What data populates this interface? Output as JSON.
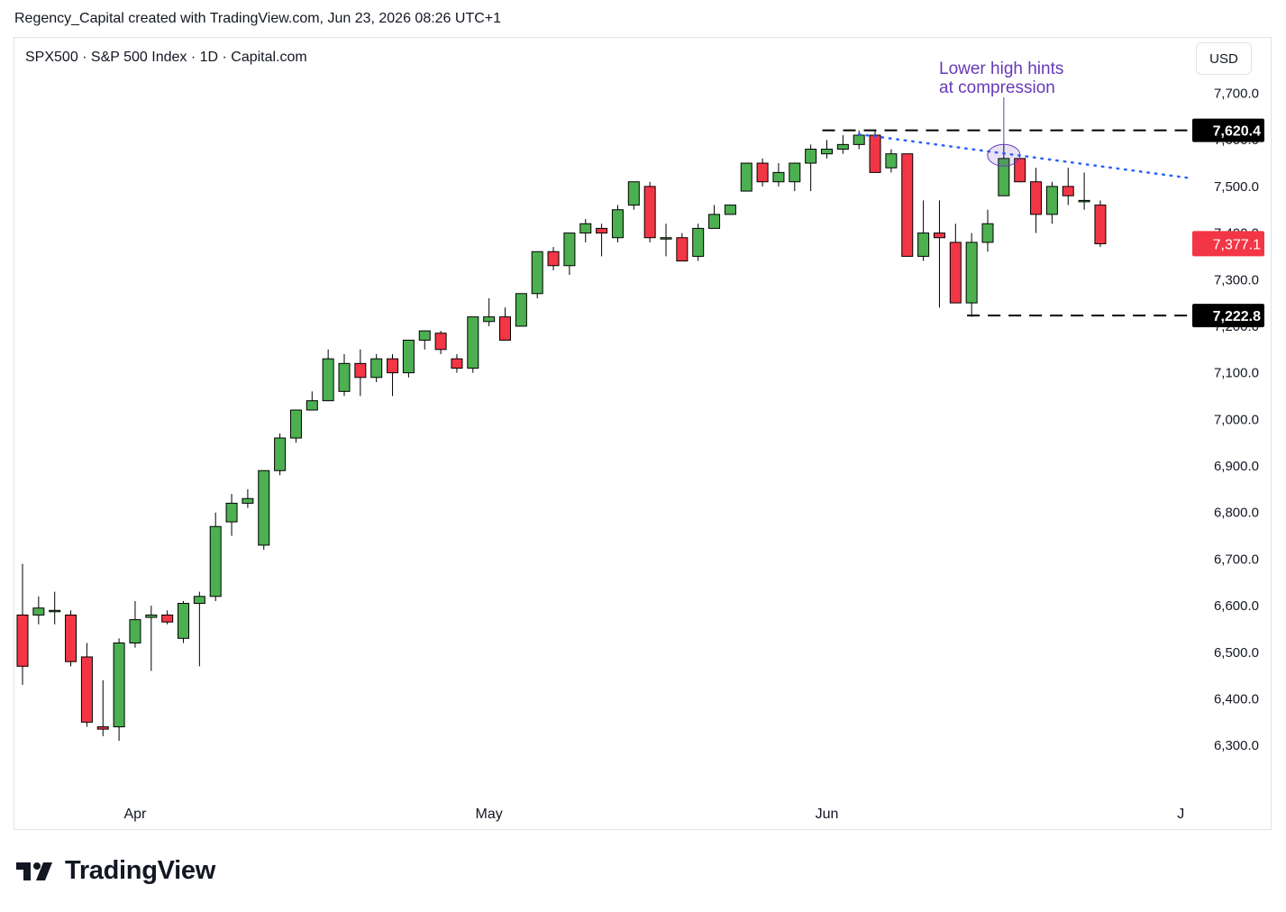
{
  "header": {
    "attribution": "Regency_Capital created with TradingView.com, Jun 23, 2026 08:26 UTC+1"
  },
  "symbol_line": "SPX500 · S&P 500 Index · 1D · Capital.com",
  "currency_button": "USD",
  "brand": "TradingView",
  "colors": {
    "up": "#4caf50",
    "down": "#f23645",
    "grid": "#ffffff",
    "trendline": "#2962ff",
    "annotation": "#673ab7",
    "price_badge": "#f23645"
  },
  "chart_data": {
    "type": "candlestick",
    "interval": "1D",
    "ylim": [
      6200,
      7760
    ],
    "y_ticks": [
      {
        "value": 6300,
        "label": "6,300.0"
      },
      {
        "value": 6400,
        "label": "6,400.0"
      },
      {
        "value": 6500,
        "label": "6,500.0"
      },
      {
        "value": 6600,
        "label": "6,600.0"
      },
      {
        "value": 6700,
        "label": "6,700.0"
      },
      {
        "value": 6800,
        "label": "6,800.0"
      },
      {
        "value": 6900,
        "label": "6,900.0"
      },
      {
        "value": 7000,
        "label": "7,000.0"
      },
      {
        "value": 7100,
        "label": "7,100.0"
      },
      {
        "value": 7200,
        "label": "7,200.0"
      },
      {
        "value": 7300,
        "label": "7,300.0"
      },
      {
        "value": 7400,
        "label": "7,400.0"
      },
      {
        "value": 7500,
        "label": "7,500.0"
      },
      {
        "value": 7600,
        "label": "7,600.0"
      },
      {
        "value": 7700,
        "label": "7,700.0"
      }
    ],
    "x_ticks": [
      {
        "bar": 7,
        "label": "Apr"
      },
      {
        "bar": 29,
        "label": "May"
      },
      {
        "bar": 50,
        "label": "Jun"
      },
      {
        "bar": 72,
        "label": "J"
      }
    ],
    "candles": [
      [
        6580,
        6690,
        6430,
        6470
      ],
      [
        6580,
        6620,
        6560,
        6595
      ],
      [
        6590,
        6630,
        6560,
        6590
      ],
      [
        6580,
        6590,
        6470,
        6480
      ],
      [
        6490,
        6520,
        6340,
        6350
      ],
      [
        6340,
        6440,
        6320,
        6335
      ],
      [
        6340,
        6530,
        6310,
        6520
      ],
      [
        6520,
        6610,
        6510,
        6570
      ],
      [
        6575,
        6600,
        6460,
        6580
      ],
      [
        6580,
        6590,
        6560,
        6565
      ],
      [
        6530,
        6610,
        6520,
        6605
      ],
      [
        6605,
        6630,
        6470,
        6620
      ],
      [
        6620,
        6800,
        6610,
        6770
      ],
      [
        6780,
        6840,
        6750,
        6820
      ],
      [
        6820,
        6850,
        6810,
        6830
      ],
      [
        6730,
        6890,
        6720,
        6890
      ],
      [
        6890,
        6970,
        6880,
        6960
      ],
      [
        6960,
        7020,
        6950,
        7020
      ],
      [
        7020,
        7060,
        7020,
        7040
      ],
      [
        7040,
        7150,
        7040,
        7130
      ],
      [
        7060,
        7140,
        7050,
        7120
      ],
      [
        7120,
        7150,
        7050,
        7090
      ],
      [
        7090,
        7140,
        7080,
        7130
      ],
      [
        7130,
        7140,
        7050,
        7100
      ],
      [
        7100,
        7170,
        7090,
        7170
      ],
      [
        7170,
        7190,
        7150,
        7190
      ],
      [
        7185,
        7190,
        7140,
        7150
      ],
      [
        7130,
        7140,
        7100,
        7110
      ],
      [
        7110,
        7220,
        7100,
        7220
      ],
      [
        7210,
        7260,
        7200,
        7220
      ],
      [
        7220,
        7240,
        7180,
        7170
      ],
      [
        7200,
        7270,
        7200,
        7270
      ],
      [
        7270,
        7360,
        7260,
        7360
      ],
      [
        7360,
        7370,
        7320,
        7330
      ],
      [
        7330,
        7400,
        7310,
        7400
      ],
      [
        7400,
        7430,
        7380,
        7420
      ],
      [
        7410,
        7420,
        7350,
        7400
      ],
      [
        7390,
        7460,
        7380,
        7450
      ],
      [
        7460,
        7510,
        7450,
        7510
      ],
      [
        7500,
        7510,
        7380,
        7390
      ],
      [
        7390,
        7420,
        7350,
        7390
      ],
      [
        7390,
        7400,
        7340,
        7340
      ],
      [
        7350,
        7420,
        7340,
        7410
      ],
      [
        7410,
        7460,
        7410,
        7440
      ],
      [
        7440,
        7460,
        7440,
        7460
      ],
      [
        7490,
        7550,
        7490,
        7550
      ],
      [
        7550,
        7560,
        7500,
        7510
      ],
      [
        7510,
        7550,
        7500,
        7530
      ],
      [
        7510,
        7550,
        7490,
        7550
      ],
      [
        7550,
        7590,
        7490,
        7580
      ],
      [
        7570,
        7600,
        7560,
        7580
      ],
      [
        7580,
        7610,
        7570,
        7590
      ],
      [
        7590,
        7620,
        7580,
        7610
      ],
      [
        7610,
        7620,
        7540,
        7530
      ],
      [
        7540,
        7580,
        7530,
        7570
      ],
      [
        7570,
        7570,
        7350,
        7350
      ],
      [
        7350,
        7470,
        7340,
        7400
      ],
      [
        7400,
        7470,
        7240,
        7390
      ],
      [
        7380,
        7420,
        7250,
        7250
      ],
      [
        7250,
        7400,
        7220,
        7380
      ],
      [
        7380,
        7450,
        7360,
        7420
      ],
      [
        7480,
        7590,
        7480,
        7560
      ],
      [
        7560,
        7560,
        7510,
        7510
      ],
      [
        7510,
        7540,
        7400,
        7440
      ],
      [
        7440,
        7510,
        7420,
        7500
      ],
      [
        7500,
        7540,
        7460,
        7480
      ],
      [
        7470,
        7530,
        7450,
        7470
      ],
      [
        7460,
        7470,
        7370,
        7377
      ]
    ],
    "levels": [
      {
        "value": 7620.4,
        "label": "7,620.4",
        "start_bar": 50
      },
      {
        "value": 7222.8,
        "label": "7,222.8",
        "start_bar": 59
      }
    ],
    "last_price": {
      "value": 7377.1,
      "label": "7,377.1"
    },
    "trendline": {
      "from": {
        "bar": 52,
        "value": 7612
      },
      "to": {
        "bar": 72,
        "value": 7518
      }
    },
    "annotation": {
      "lines": [
        "Lower high hints",
        "at compression"
      ],
      "bar": 61,
      "value": 7567
    }
  }
}
